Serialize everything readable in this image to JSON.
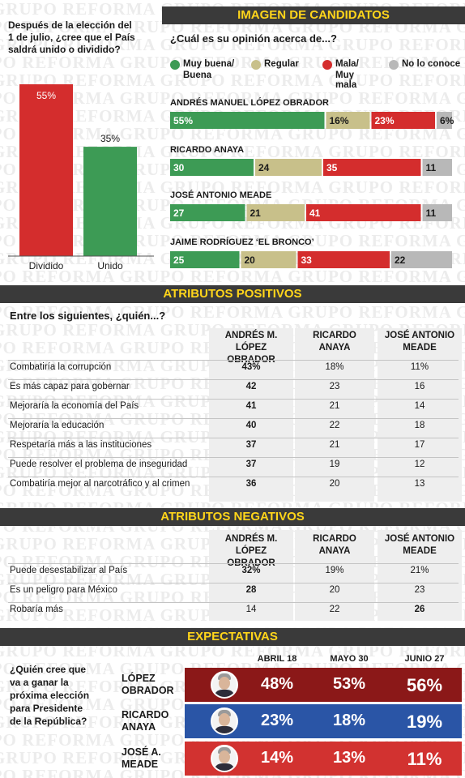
{
  "watermark": "GRUPO REFORMA",
  "colors": {
    "green": "#3d9b55",
    "tan": "#c8c08a",
    "red": "#d42d2d",
    "gray": "#b8b8b8",
    "header_bg": "#3a3a3a",
    "header_text": "#ffd51a",
    "dark_red": "#8b1818",
    "blue": "#2a55a6",
    "bright_red": "#d23230"
  },
  "unity": {
    "question": "Después de la elección del 1 de julio, ¿cree que el País saldrá unido o dividido?",
    "chart_data": {
      "type": "bar",
      "categories": [
        "Dividido",
        "Unido"
      ],
      "values": [
        55,
        35
      ],
      "value_labels": [
        "55%",
        "35%"
      ],
      "colors": [
        "#d42d2d",
        "#3d9b55"
      ],
      "ylim": [
        0,
        60
      ]
    }
  },
  "image": {
    "header": "IMAGEN DE CANDIDATOS",
    "question": "¿Cuál es su opinión acerca de...?",
    "legend": [
      {
        "label": "Muy buena/ Buena",
        "color": "#3d9b55"
      },
      {
        "label": "Regular",
        "color": "#c8c08a"
      },
      {
        "label": "Mala/ Muy mala",
        "color": "#d42d2d"
      },
      {
        "label": "No lo conoce",
        "color": "#b8b8b8"
      }
    ],
    "chart_data": {
      "type": "bar",
      "orientation": "horizontal-stacked",
      "categories": [
        "ANDRÉS MANUEL LÓPEZ OBRADOR",
        "RICARDO ANAYA",
        "JOSÉ ANTONIO MEADE",
        "JAIME RODRÍGUEZ ‘EL BRONCO’"
      ],
      "series": [
        {
          "name": "Muy buena/ Buena",
          "values": [
            55,
            30,
            27,
            25
          ]
        },
        {
          "name": "Regular",
          "values": [
            16,
            24,
            21,
            20
          ]
        },
        {
          "name": "Mala/ Muy mala",
          "values": [
            23,
            35,
            41,
            33
          ]
        },
        {
          "name": "No lo conoce",
          "values": [
            6,
            11,
            11,
            22
          ]
        }
      ],
      "value_labels": [
        [
          "55%",
          "16%",
          "23%",
          "6%"
        ],
        [
          "30",
          "24",
          "35",
          "11"
        ],
        [
          "27",
          "21",
          "41",
          "11"
        ],
        [
          "25",
          "20",
          "33",
          "22"
        ]
      ]
    }
  },
  "positive": {
    "header": "ATRIBUTOS POSITIVOS",
    "question": "Entre los siguientes, ¿quién...?",
    "columns": [
      "ANDRÉS M. LÓPEZ OBRADOR",
      "RICARDO ANAYA",
      "JOSÉ ANTONIO MEADE"
    ],
    "chart_data": {
      "type": "table",
      "rows": [
        {
          "label": "Combatiría la corrupción",
          "values": [
            "43%",
            "18%",
            "11%"
          ]
        },
        {
          "label": "Es más capaz para gobernar",
          "values": [
            "42",
            "23",
            "16"
          ]
        },
        {
          "label": "Mejoraría la economía del País",
          "values": [
            "41",
            "21",
            "14"
          ]
        },
        {
          "label": "Mejoraría la educación",
          "values": [
            "40",
            "22",
            "18"
          ]
        },
        {
          "label": "Respetaría más a las instituciones",
          "values": [
            "37",
            "21",
            "17"
          ]
        },
        {
          "label": "Puede resolver el problema de inseguridad",
          "values": [
            "37",
            "19",
            "12"
          ]
        },
        {
          "label": "Combatiría mejor al narcotráfico y al crimen",
          "values": [
            "36",
            "20",
            "13"
          ]
        }
      ]
    }
  },
  "negative": {
    "header": "ATRIBUTOS NEGATIVOS",
    "columns": [
      "ANDRÉS M. LÓPEZ OBRADOR",
      "RICARDO ANAYA",
      "JOSÉ ANTONIO MEADE"
    ],
    "chart_data": {
      "type": "table",
      "rows": [
        {
          "label": "Puede desestabilizar al País",
          "values": [
            "32%",
            "19%",
            "21%"
          ],
          "bold": [
            0
          ]
        },
        {
          "label": "Es un peligro para México",
          "values": [
            "28",
            "20",
            "23"
          ],
          "bold": [
            0
          ]
        },
        {
          "label": "Robaría más",
          "values": [
            "14",
            "22",
            "26"
          ],
          "bold": [
            2
          ]
        }
      ]
    }
  },
  "expectations": {
    "header": "EXPECTATIVAS",
    "question": "¿Quién cree que va a ganar la próxima elección para Presidente de la República?",
    "chart_data": {
      "type": "table",
      "columns": [
        "ABRIL 18",
        "MAYO 30",
        "JUNIO 27"
      ],
      "rows": [
        {
          "name": "LÓPEZ OBRADOR",
          "values": [
            "48%",
            "53%",
            "56%"
          ],
          "color": "#8b1818"
        },
        {
          "name": "RICARDO ANAYA",
          "values": [
            "23%",
            "18%",
            "19%"
          ],
          "color": "#2a55a6"
        },
        {
          "name": "JOSÉ A. MEADE",
          "values": [
            "14%",
            "13%",
            "11%"
          ],
          "color": "#d23230"
        }
      ]
    }
  }
}
